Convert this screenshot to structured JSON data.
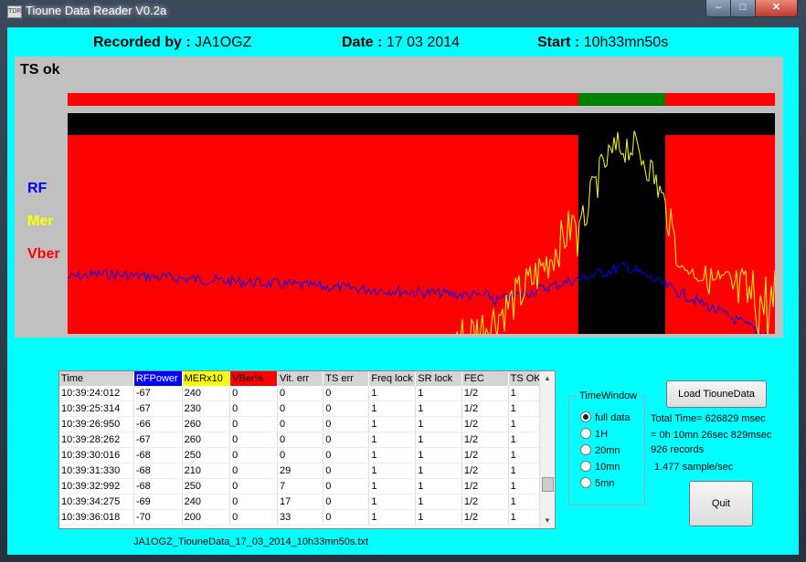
{
  "window": {
    "title": "Tioune Data Reader V0.2a",
    "app_icon_text": "TDR",
    "minimize": "‒",
    "maximize": "□",
    "close": "✕"
  },
  "header": {
    "recorded_label": "Recorded by :",
    "recorded_value": "JA1OGZ",
    "date_label": "Date :",
    "date_value": "17 03 2014",
    "start_label": "Start :",
    "start_value": "10h33mn50s"
  },
  "plot": {
    "ts_label": "TS ok",
    "legend": [
      "RF",
      "Mer",
      "Vber"
    ],
    "colors": {
      "rf": "#0000ff",
      "mer": "#ffff00",
      "vber": "#ff0000",
      "ts_ok": "#008000",
      "ts_bad": "#ff0000",
      "background": "#000000",
      "panel": "#c0c0c0"
    },
    "ts_ok_window": [
      0.722,
      0.845
    ],
    "vber_gap": [
      0.722,
      0.845
    ]
  },
  "table": {
    "columns": [
      "Time",
      "RFPower",
      "MERx10",
      "VBer%",
      "Vit. err",
      "TS err",
      "Freq lock",
      "SR lock",
      "FEC",
      "TS OK"
    ],
    "header_colors": [
      "#d4d4d4",
      "#0000ff",
      "#ffff00",
      "#ff0000",
      "#d4d4d4",
      "#d4d4d4",
      "#d4d4d4",
      "#d4d4d4",
      "#d4d4d4",
      "#d4d4d4"
    ],
    "rows": [
      [
        "10:39:24:012",
        "-67",
        "240",
        "0",
        "0",
        "0",
        "1",
        "1",
        "1/2",
        "1"
      ],
      [
        "10:39:25:314",
        "-67",
        "230",
        "0",
        "0",
        "0",
        "1",
        "1",
        "1/2",
        "1"
      ],
      [
        "10:39:26:950",
        "-66",
        "260",
        "0",
        "0",
        "0",
        "1",
        "1",
        "1/2",
        "1"
      ],
      [
        "10:39:28:262",
        "-67",
        "260",
        "0",
        "0",
        "0",
        "1",
        "1",
        "1/2",
        "1"
      ],
      [
        "10:39:30:016",
        "-68",
        "250",
        "0",
        "0",
        "0",
        "1",
        "1",
        "1/2",
        "1"
      ],
      [
        "10:39:31:330",
        "-68",
        "210",
        "0",
        "29",
        "0",
        "1",
        "1",
        "1/2",
        "1"
      ],
      [
        "10:39:32:992",
        "-68",
        "250",
        "0",
        "7",
        "0",
        "1",
        "1",
        "1/2",
        "1"
      ],
      [
        "10:39:34:275",
        "-69",
        "240",
        "0",
        "17",
        "0",
        "1",
        "1",
        "1/2",
        "1"
      ],
      [
        "10:39:36:018",
        "-70",
        "200",
        "0",
        "33",
        "0",
        "1",
        "1",
        "1/2",
        "1"
      ]
    ]
  },
  "filename": "JA1OGZ_TiouneData_17_03_2014_10h33mn50s.txt",
  "time_window": {
    "title": "TimeWindow",
    "options": [
      "full data",
      "1H",
      "20mn",
      "10mn",
      "5mn"
    ],
    "selected": "full data"
  },
  "buttons": {
    "load": "Load TiouneData",
    "quit": "Quit"
  },
  "info": {
    "total_time": "Total Time= 626829 msec",
    "duration": "= 0h  10mn 26sec 829msec",
    "records": "926 records",
    "rate": "1.477 sample/sec"
  }
}
